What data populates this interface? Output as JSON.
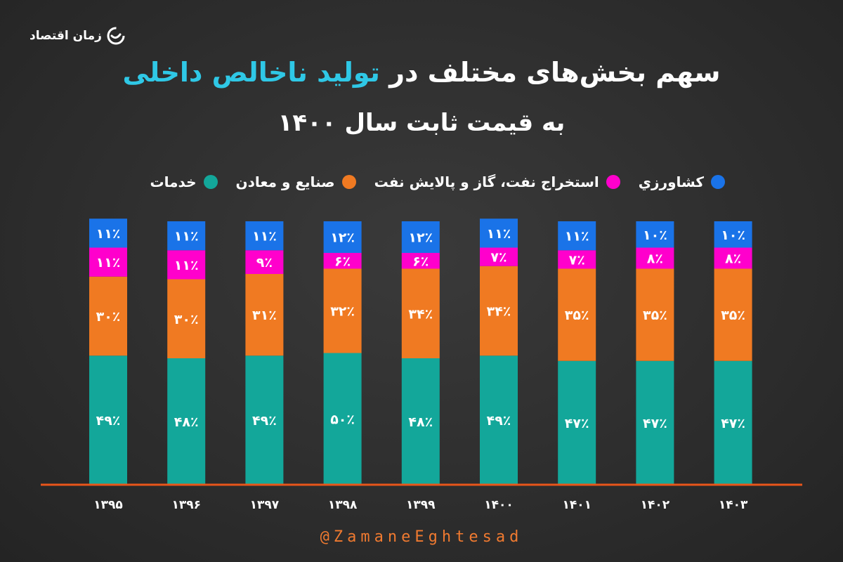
{
  "brand": {
    "name": "زمان اقتصاد",
    "icon": "zaman-logo-icon"
  },
  "title": {
    "part1": "سهم بخش‌های مختلف در ",
    "highlight": "تولید ناخالص داخلی",
    "subtitle": "به قیمت ثابت سال ۱۴۰۰"
  },
  "colors": {
    "agriculture": "#1a73e8",
    "oil": "#ff00cc",
    "industry": "#f07a22",
    "services": "#13a79a",
    "title_highlight": "#2fc8e6",
    "axis": "#e8551a"
  },
  "legend": [
    {
      "label": "کشاورزي",
      "color": "#1a73e8"
    },
    {
      "label": "استخراج نفت، گاز و پالایش نفت",
      "color": "#ff00cc"
    },
    {
      "label": "صنایع و معادن",
      "color": "#f07a22"
    },
    {
      "label": "خدمات",
      "color": "#13a79a"
    }
  ],
  "chart_data": {
    "type": "bar",
    "stacked": true,
    "normalized": true,
    "categories": [
      "۱۳۹۵",
      "۱۳۹۶",
      "۱۳۹۷",
      "۱۳۹۸",
      "۱۳۹۹",
      "۱۴۰۰",
      "۱۴۰۱",
      "۱۴۰۲",
      "۱۴۰۳"
    ],
    "series": [
      {
        "name": "خدمات",
        "color": "#13a79a",
        "values": [
          49,
          48,
          49,
          50,
          48,
          49,
          47,
          47,
          47
        ],
        "labels": [
          "۴۹٪",
          "۴۸٪",
          "۴۹٪",
          "۵۰٪",
          "۴۸٪",
          "۴۹٪",
          "۴۷٪",
          "۴۷٪",
          "۴۷٪"
        ]
      },
      {
        "name": "صنایع و معادن",
        "color": "#f07a22",
        "values": [
          30,
          30,
          31,
          32,
          34,
          34,
          35,
          35,
          35
        ],
        "labels": [
          "۳۰٪",
          "۳۰٪",
          "۳۱٪",
          "۳۲٪",
          "۳۴٪",
          "۳۴٪",
          "۳۵٪",
          "۳۵٪",
          "۳۵٪"
        ]
      },
      {
        "name": "استخراج نفت، گاز و پالایش نفت",
        "color": "#ff00cc",
        "values": [
          11,
          11,
          9,
          6,
          6,
          7,
          7,
          8,
          8
        ],
        "labels": [
          "۱۱٪",
          "۱۱٪",
          "۹٪",
          "۶٪",
          "۶٪",
          "۷٪",
          "۷٪",
          "۸٪",
          "۸٪"
        ]
      },
      {
        "name": "کشاورزي",
        "color": "#1a73e8",
        "values": [
          11,
          11,
          11,
          12,
          12,
          11,
          11,
          10,
          10
        ],
        "labels": [
          "۱۱٪",
          "۱۱٪",
          "۱۱٪",
          "۱۲٪",
          "۱۲٪",
          "۱۱٪",
          "۱۱٪",
          "۱۰٪",
          "۱۰٪"
        ]
      }
    ],
    "ylim": [
      0,
      100
    ]
  },
  "footer": {
    "handle": "@ZamaneEghtesad"
  }
}
